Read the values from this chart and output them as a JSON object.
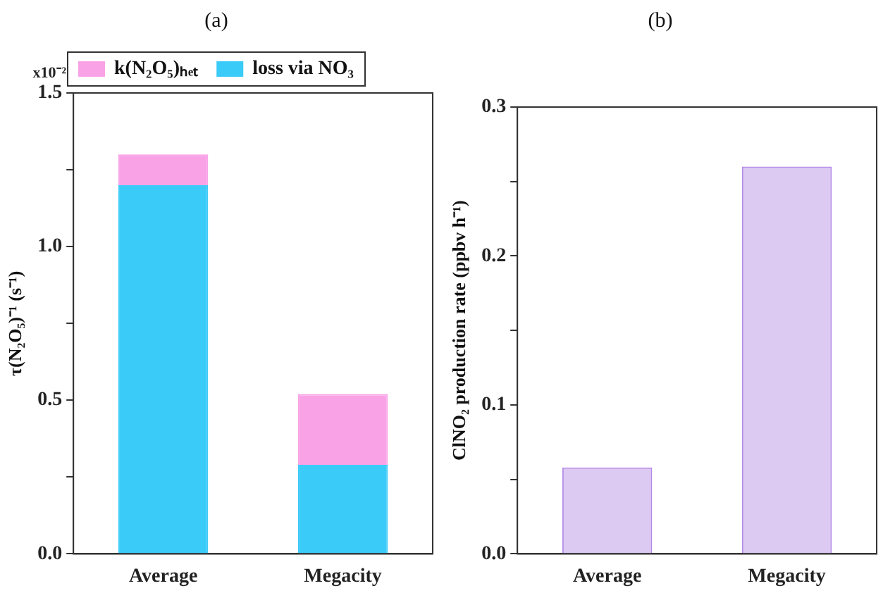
{
  "chart_data": [
    {
      "type": "bar",
      "title": "(a)",
      "ylabel": "τ(N₂O₅)⁻¹ (s⁻¹)",
      "categories": [
        "Average",
        "Megacity"
      ],
      "stacked": true,
      "legend": "top",
      "series": [
        {
          "name": "loss via NO₃",
          "color": "#3bcbf8",
          "values": [
            1.2,
            0.29
          ]
        },
        {
          "name": "k(N₂O₅)ₕₑₜ",
          "color": "#f9a3e6",
          "values": [
            0.1,
            0.23
          ]
        }
      ],
      "annotations": [
        "x10⁻²"
      ],
      "ylim": [
        0,
        1.5
      ],
      "yticks": [
        {
          "value": 0,
          "label": "0.0"
        },
        {
          "value": 0.25,
          "label": null
        },
        {
          "value": 0.5,
          "label": "0.5"
        },
        {
          "value": 0.75,
          "label": null
        },
        {
          "value": 1,
          "label": "1.0"
        },
        {
          "value": 1.25,
          "label": null
        },
        {
          "value": 1.5,
          "label": "1.5"
        }
      ],
      "grid": false
    },
    {
      "type": "bar",
      "title": "(b)",
      "ylabel": "ClNO₂ production rate (ppbv h⁻¹)",
      "categories": [
        "Average",
        "Megacity"
      ],
      "series": [
        {
          "color": "#dccaf3",
          "values": [
            0.058,
            0.26
          ]
        }
      ],
      "ylim": [
        0,
        0.3
      ],
      "yticks": [
        {
          "value": 0,
          "label": "0.0"
        },
        {
          "value": 0.05,
          "label": null
        },
        {
          "value": 0.1,
          "label": "0.1"
        },
        {
          "value": 0.15,
          "label": null
        },
        {
          "value": 0.2,
          "label": "0.2"
        },
        {
          "value": 0.25,
          "label": null
        },
        {
          "value": 0.3,
          "label": "0.3"
        }
      ],
      "grid": false
    }
  ]
}
